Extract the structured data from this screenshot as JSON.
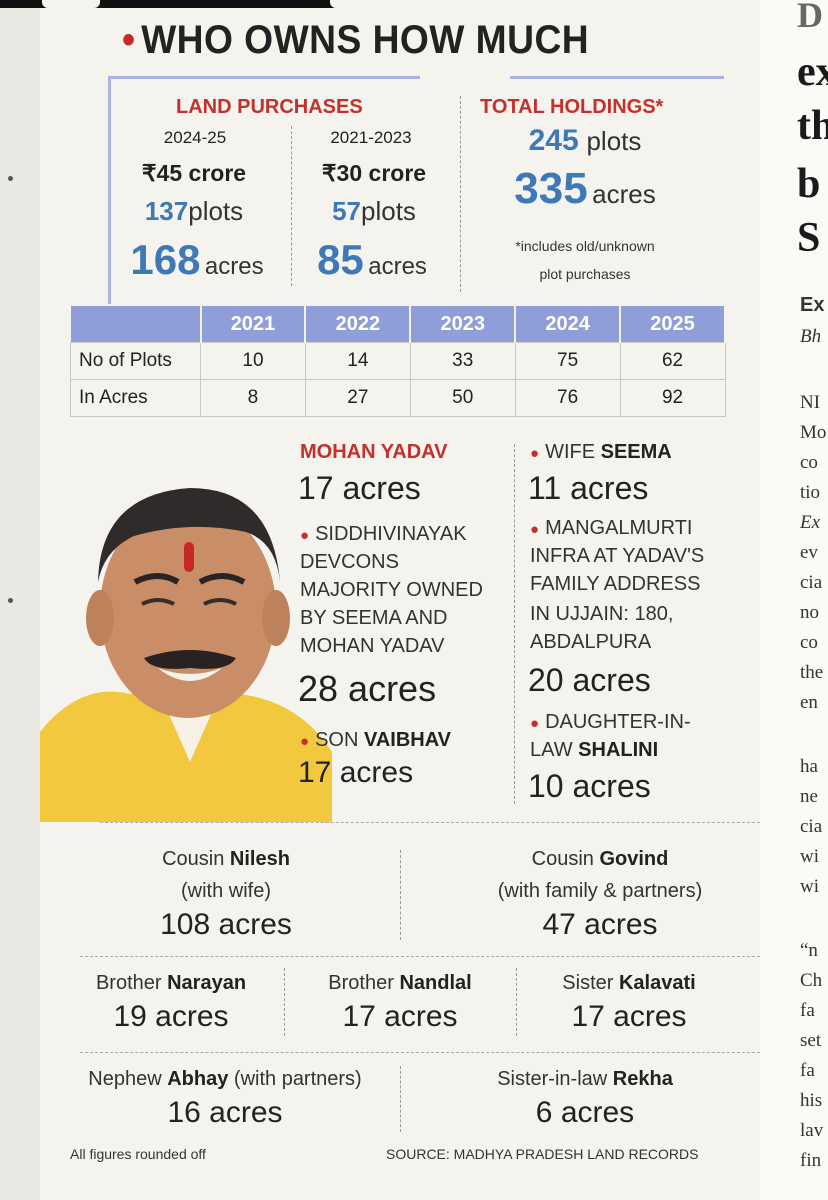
{
  "heading": "WHO OWNS HOW MUCH",
  "land_purchases": {
    "title": "LAND PURCHASES",
    "col1": {
      "period": "2024-25",
      "crore": "₹45 crore",
      "plots_num": "137",
      "plots_unit": "plots",
      "acres_num": "168",
      "acres_unit": "acres"
    },
    "col2": {
      "period": "2021-2023",
      "crore": "₹30 crore",
      "plots_num": "57",
      "plots_unit": "plots",
      "acres_num": "85",
      "acres_unit": "acres"
    }
  },
  "total_holdings": {
    "title": "TOTAL HOLDINGS*",
    "plots_num": "245",
    "plots_unit": "plots",
    "acres_num": "335",
    "acres_unit": "acres",
    "note_line1": "*includes old/unknown",
    "note_line2": "plot purchases"
  },
  "table": {
    "years": [
      "2021",
      "2022",
      "2023",
      "2024",
      "2025"
    ],
    "rows": [
      {
        "label": "No of Plots",
        "values": [
          "10",
          "14",
          "33",
          "75",
          "62"
        ]
      },
      {
        "label": "In Acres",
        "values": [
          "8",
          "27",
          "50",
          "76",
          "92"
        ]
      }
    ]
  },
  "people": {
    "mohan": {
      "name": "MOHAN YADAV",
      "acres": "17 acres"
    },
    "siddhi": {
      "l1": "SIDDHIVINAYAK",
      "l2": "DEVCONS",
      "l3": "MAJORITY OWNED",
      "l4": "BY SEEMA AND",
      "l5": "MOHAN YADAV",
      "acres": "28 acres"
    },
    "son": {
      "rel": "SON",
      "name": "VAIBHAV",
      "acres": "17 acres"
    },
    "wife": {
      "rel": "WIFE",
      "name": "SEEMA",
      "acres": "11 acres"
    },
    "mangal": {
      "l1": "MANGALMURTI",
      "l2": "INFRA AT YADAV'S",
      "l3": "FAMILY ADDRESS",
      "l4": "IN UJJAIN: 180,",
      "l5": "ABDALPURA",
      "acres": "20 acres"
    },
    "daughter": {
      "l1": "DAUGHTER-IN-",
      "l2a": "LAW",
      "l2b": "SHALINI",
      "acres": "10 acres"
    }
  },
  "relatives": {
    "nilesh": {
      "rel": "Cousin",
      "name": "Nilesh",
      "sub": "(with wife)",
      "acres": "108 acres"
    },
    "govind": {
      "rel": "Cousin",
      "name": "Govind",
      "sub": "(with family & partners)",
      "acres": "47 acres"
    },
    "narayan": {
      "rel": "Brother",
      "name": "Narayan",
      "acres": "19 acres"
    },
    "nandlal": {
      "rel": "Brother",
      "name": "Nandlal",
      "acres": "17 acres"
    },
    "kalavati": {
      "rel": "Sister",
      "name": "Kalavati",
      "acres": "17 acres"
    },
    "abhay": {
      "rel": "Nephew",
      "name": "Abhay",
      "sub": "(with partners)",
      "acres": "16 acres"
    },
    "rekha": {
      "rel": "Sister-in-law",
      "name": "Rekha",
      "acres": "6 acres"
    }
  },
  "footer": {
    "left": "All figures rounded off",
    "right": "SOURCE: MADHYA PRADESH LAND RECORDS"
  },
  "article_fragments": {
    "big": [
      "D",
      "ex",
      "th",
      "b",
      "S"
    ],
    "byline": [
      "Ex",
      "Bh"
    ],
    "lines": [
      "NI",
      "Mo",
      "co",
      "tio",
      "Ex",
      "ev",
      "cia",
      "no",
      "co",
      "the",
      "en",
      "ha",
      "ne",
      "cia",
      "wi",
      "wi",
      "“n",
      "Ch",
      "fa",
      "set",
      "fa",
      "his",
      "lav",
      "fin"
    ]
  }
}
